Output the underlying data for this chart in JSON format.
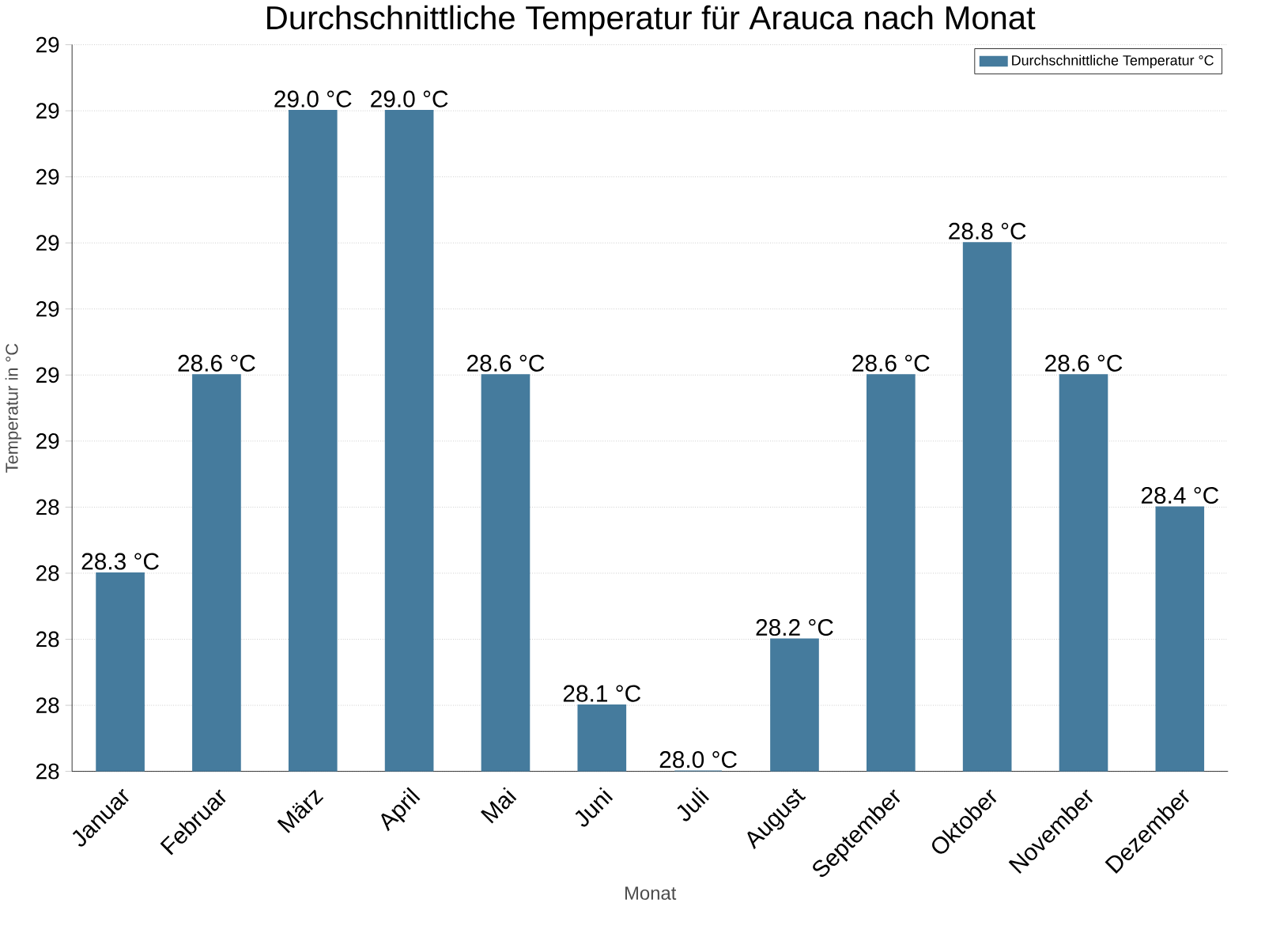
{
  "chart_data": {
    "type": "bar",
    "title": "Durchschnittliche Temperatur für Arauca nach Monat",
    "xlabel": "Monat",
    "ylabel": "Temperatur in °C",
    "categories": [
      "Januar",
      "Februar",
      "März",
      "April",
      "Mai",
      "Juni",
      "Juli",
      "August",
      "September",
      "Oktober",
      "November",
      "Dezember"
    ],
    "series": [
      {
        "name": "Durchschnittliche Temperatur °C",
        "color": "#457b9d",
        "values": [
          28.3,
          28.6,
          29.0,
          29.0,
          28.6,
          28.1,
          28.0,
          28.2,
          28.6,
          28.8,
          28.6,
          28.4
        ],
        "value_labels": [
          "28.3 °C",
          "28.6 °C",
          "29.0 °C",
          "29.0 °C",
          "28.6 °C",
          "28.1 °C",
          "28.0 °C",
          "28.2 °C",
          "28.6 °C",
          "28.8 °C",
          "28.6 °C",
          "28.4 °C"
        ]
      }
    ],
    "ylim": [
      28,
      29.1
    ],
    "yticks": [
      {
        "value": 28.0,
        "label": "28"
      },
      {
        "value": 28.1,
        "label": "28"
      },
      {
        "value": 28.2,
        "label": "28"
      },
      {
        "value": 28.3,
        "label": "28"
      },
      {
        "value": 28.4,
        "label": "28"
      },
      {
        "value": 28.5,
        "label": "29"
      },
      {
        "value": 28.6,
        "label": "29"
      },
      {
        "value": 28.7,
        "label": "29"
      },
      {
        "value": 28.8,
        "label": "29"
      },
      {
        "value": 28.9,
        "label": "29"
      },
      {
        "value": 29.0,
        "label": "29"
      },
      {
        "value": 29.1,
        "label": "29"
      }
    ],
    "grid": "y",
    "legend": "top right"
  }
}
